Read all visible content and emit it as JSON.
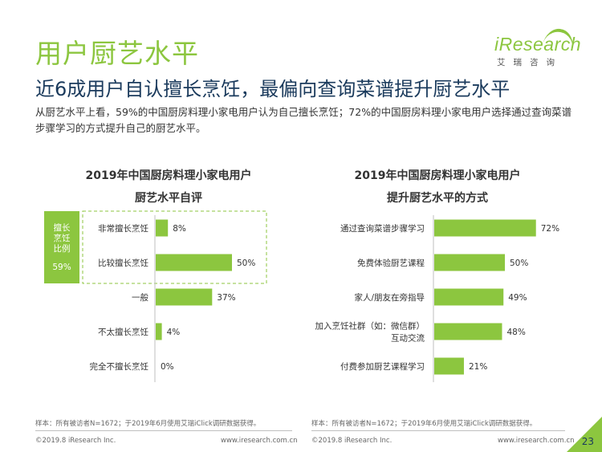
{
  "header": {
    "title": "用户厨艺水平",
    "subtitle": "近6成用户自认擅长烹饪，最偏向查询菜谱提升厨艺水平",
    "summary": "从厨艺水平上看，59%的中国厨房料理小家电用户认为自己擅长烹饪；72%的中国厨房料理小家电用户选择通过查询菜谱步骤学习的方式提升自己的厨艺水平。"
  },
  "logo": {
    "word": "iResearch",
    "cn": "艾瑞咨询"
  },
  "colors": {
    "accent": "#8cc63f",
    "navy": "#1a3a5c"
  },
  "chart_data": [
    {
      "type": "bar",
      "orientation": "horizontal",
      "title_line1": "2019年中国厨房料理小家电用户",
      "title_line2": "厨艺水平自评",
      "categories": [
        "非常擅长烹饪",
        "比较擅长烹饪",
        "一般",
        "不太擅长烹饪",
        "完全不擅长烹饪"
      ],
      "values": [
        8,
        50,
        37,
        4,
        0
      ],
      "value_labels": [
        "8%",
        "50%",
        "37%",
        "4%",
        "0%"
      ],
      "xlim": [
        0,
        100
      ],
      "annotation": {
        "label_lines": [
          "擅长",
          "烹饪",
          "比例"
        ],
        "value": "59%"
      }
    },
    {
      "type": "bar",
      "orientation": "horizontal",
      "title_line1": "2019年中国厨房料理小家电用户",
      "title_line2": "提升厨艺水平的方式",
      "categories": [
        "通过查询菜谱步骤学习",
        "免费体验厨艺课程",
        "家人/朋友在旁指导",
        "加入烹饪社群（如：微信群）互动交流",
        "付费参加厨艺课程学习"
      ],
      "category_lines": [
        [
          "通过查询菜谱步骤学习"
        ],
        [
          "免费体验厨艺课程"
        ],
        [
          "家人/朋友在旁指导"
        ],
        [
          "加入烹饪社群（如：微信群）",
          "互动交流"
        ],
        [
          "付费参加厨艺课程学习"
        ]
      ],
      "values": [
        72,
        50,
        49,
        48,
        21
      ],
      "value_labels": [
        "72%",
        "50%",
        "49%",
        "48%",
        "21%"
      ],
      "xlim": [
        0,
        100
      ]
    }
  ],
  "footer": {
    "note_left": "样本：所有被访者N=1672；于2019年6月使用艾瑞iClick调研数据获得。",
    "note_right": "样本：所有被访者N=1672；于2019年6月使用艾瑞iClick调研数据获得。",
    "copyright_left": "©2019.8 iResearch Inc.",
    "url_left": "www.iresearch.com.cn",
    "copyright_right": "©2019.8 iResearch Inc.",
    "url_right": "www.iresearch.com.cn",
    "page_number": "23"
  }
}
